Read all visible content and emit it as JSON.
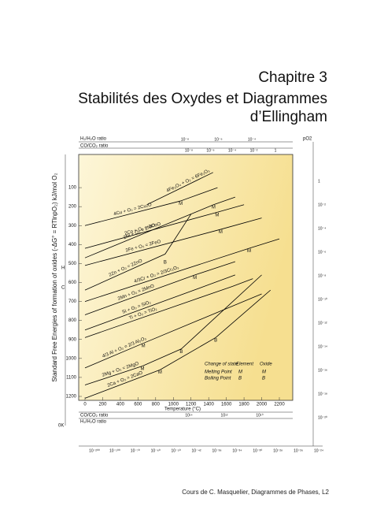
{
  "document": {
    "chapter": "Chapitre 3",
    "title_lines": [
      "Stabilités des Oxydes et Diagrammes",
      "d’Ellingham"
    ],
    "footer": "Cours de C. Masquelier, Diagrammes de Phases, L2"
  },
  "chart_data": {
    "type": "line",
    "y_label": "Standard Free Energies of formation of oxides (-ΔG° = RTlnpO₂) kJ/mol O₂",
    "x_label": "Temperature (°C)",
    "xlim": [
      0,
      2200
    ],
    "xticks": [
      0,
      200,
      400,
      600,
      800,
      1000,
      1200,
      1400,
      1600,
      1800,
      2000,
      2200
    ],
    "ylim": [
      0,
      1200
    ],
    "yticks": [
      100,
      200,
      300,
      400,
      500,
      600,
      700,
      800,
      900,
      1000,
      1100,
      1200
    ],
    "series": [
      {
        "name": "4Fe₃O₄ + O₂ = 6Fe₂O₃",
        "color": "#000000",
        "x": [
          700,
          1450
        ],
        "values": [
          190,
          20
        ]
      },
      {
        "name": "4Cu + O₂ = 2Cu₂O",
        "color": "#000000",
        "x": [
          0,
          1083,
          1500
        ],
        "values": [
          300,
          170,
          100
        ]
      },
      {
        "name": "2Ni + O₂ = 2NiO",
        "color": "#000000",
        "x": [
          0,
          1455,
          1700
        ],
        "values": [
          470,
          190,
          150
        ]
      },
      {
        "name": "2Co + O₂ = 2CoO",
        "color": "#000000",
        "x": [
          0,
          1495,
          1800
        ],
        "values": [
          420,
          230,
          190
        ]
      },
      {
        "name": "2Fe + O₂ = 2FeO",
        "color": "#000000",
        "x": [
          0,
          1535,
          2000
        ],
        "values": [
          510,
          320,
          260
        ]
      },
      {
        "name": "2Zn + O₂ = 2ZnO",
        "color": "#000000",
        "x": [
          0,
          907,
          1200
        ],
        "values": [
          640,
          450,
          240
        ]
      },
      {
        "name": "4/3Cr + O₂ = 2/3Cr₂O₃",
        "color": "#000000",
        "x": [
          0,
          1857,
          2200
        ],
        "values": [
          700,
          420,
          370
        ]
      },
      {
        "name": "2Mn + O₂ = 2MnO",
        "color": "#000000",
        "x": [
          0,
          1244,
          1700
        ],
        "values": [
          770,
          560,
          490
        ]
      },
      {
        "name": "Si + O₂ = SiO₂",
        "color": "#000000",
        "x": [
          0,
          1410,
          1700
        ],
        "values": [
          850,
          610,
          560
        ]
      },
      {
        "name": "Ti + O₂ = TiO₂",
        "color": "#000000",
        "x": [
          0,
          1670,
          1900
        ],
        "values": [
          890,
          620,
          580
        ]
      },
      {
        "name": "4/3 Al + O₂ = 2/3 Al₂O₃",
        "color": "#000000",
        "x": [
          0,
          660,
          2000
        ],
        "values": [
          1050,
          920,
          660
        ]
      },
      {
        "name": "2Mg + O₂ = 2MgO",
        "color": "#000000",
        "x": [
          0,
          650,
          1090,
          2000
        ],
        "values": [
          1140,
          1040,
          950,
          560
        ]
      },
      {
        "name": "2Ca + O₂ = 2CaO",
        "color": "#000000",
        "x": [
          0,
          850,
          1480,
          2100
        ],
        "values": [
          1210,
          1060,
          890,
          640
        ]
      }
    ],
    "annotations": [
      {
        "x": 1083,
        "y": 155,
        "label": "M"
      },
      {
        "x": 1455,
        "y": 175,
        "label": "M"
      },
      {
        "x": 1495,
        "y": 215,
        "label": "M"
      },
      {
        "x": 1535,
        "y": 305,
        "label": "M"
      },
      {
        "x": 907,
        "y": 465,
        "label": "B"
      },
      {
        "x": 1857,
        "y": 405,
        "label": "M"
      },
      {
        "x": 1244,
        "y": 545,
        "label": "M"
      },
      {
        "x": 660,
        "y": 905,
        "label": "M"
      },
      {
        "x": 650,
        "y": 1025,
        "label": "M"
      },
      {
        "x": 1090,
        "y": 935,
        "label": "B"
      },
      {
        "x": 850,
        "y": 1045,
        "label": "M"
      },
      {
        "x": 1480,
        "y": 875,
        "label": "B"
      }
    ],
    "legend_texts": [
      "Change of state",
      "Element",
      "Oxide",
      "Melting Point",
      "M",
      "M",
      "Boiling Point",
      "B",
      "B"
    ],
    "scale_titles": {
      "top_h2": "H₂/H₂O ratio",
      "top_co": "CO/CO₂ ratio",
      "bottom_co": "CO/CO₂ ratio",
      "bottom_h2": "H₂/H₂O ratio",
      "po2": "pO2",
      "left_h": "H",
      "left_c": "C",
      "left_0k": "0K"
    },
    "top_co_ticks": [
      "10⁻⁸",
      "10⁻⁶",
      "10⁻⁴",
      "10⁻²",
      "1"
    ],
    "top_h2_ticks": [
      "10⁻⁸",
      "10⁻⁶",
      "10⁻⁴"
    ],
    "right_ticks": [
      "1",
      "10⁻²",
      "10⁻⁴",
      "10⁻⁶",
      "10⁻⁸",
      "10⁻¹⁰",
      "10⁻¹²",
      "10⁻¹⁴",
      "10⁻¹⁶",
      "10⁻¹⁸",
      "10⁻²⁰"
    ],
    "bottom_h2_ticks": [
      "10¹⁴",
      "10¹²",
      "10¹⁰"
    ],
    "bottom_co_ticks": [
      "10⁻²⁰⁰",
      "10⁻¹⁰⁰",
      "10⁻⁷⁰",
      "10⁻⁶⁰",
      "10⁻⁵⁰",
      "10⁻⁴²",
      "10⁻³⁸",
      "10⁻³⁴",
      "10⁻³⁰",
      "10⁻²⁸",
      "10⁻²⁶",
      "10⁻²⁴"
    ]
  }
}
